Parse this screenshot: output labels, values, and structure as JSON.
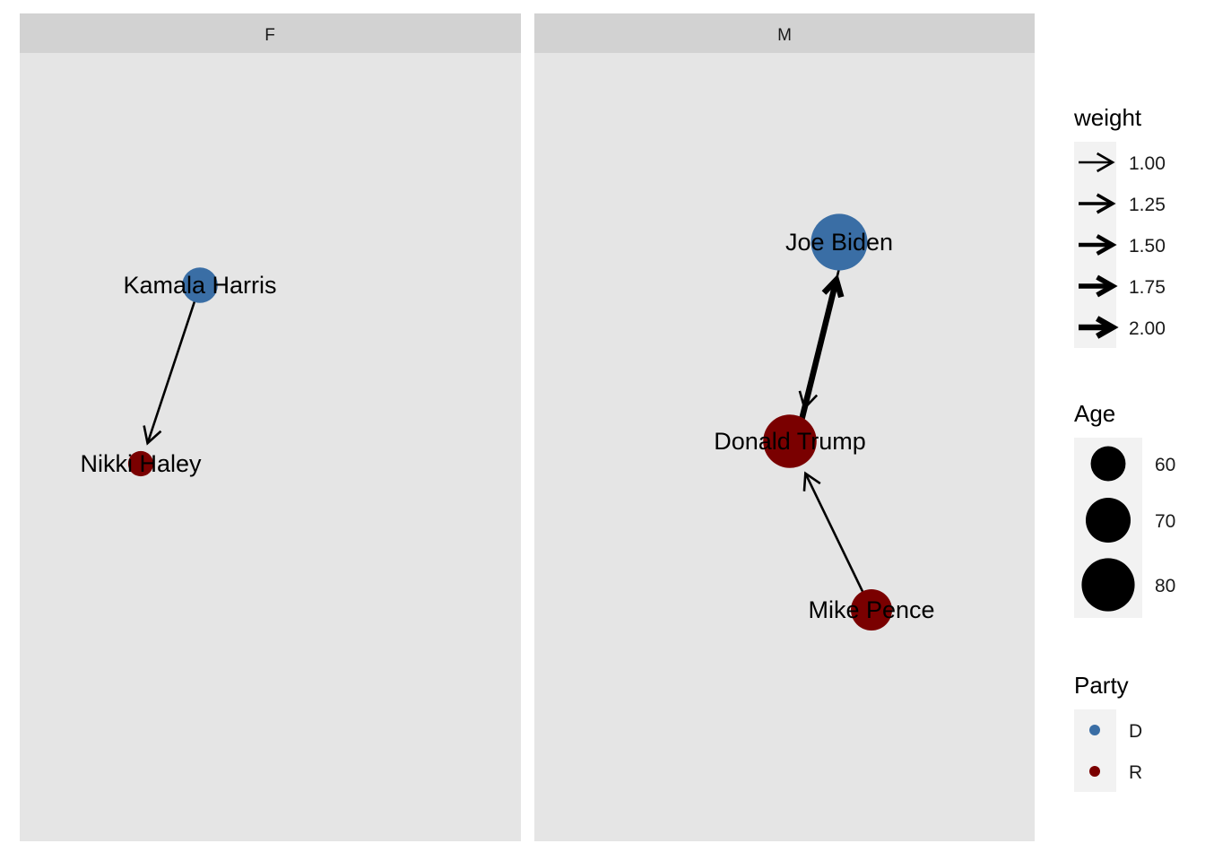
{
  "chart_data": {
    "type": "network",
    "facets": [
      {
        "label": "F",
        "nodes": [
          {
            "id": "kamala",
            "label": "Kamala Harris",
            "party": "D",
            "age": 59
          },
          {
            "id": "nikki",
            "label": "Nikki Haley",
            "party": "R",
            "age": 52
          }
        ],
        "edges": [
          {
            "from": "kamala",
            "to": "nikki",
            "weight": 1.0
          }
        ]
      },
      {
        "label": "M",
        "nodes": [
          {
            "id": "biden",
            "label": "Joe Biden",
            "party": "D",
            "age": 81
          },
          {
            "id": "trump",
            "label": "Donald Trump",
            "party": "R",
            "age": 77
          },
          {
            "id": "pence",
            "label": "Mike Pence",
            "party": "R",
            "age": 64
          }
        ],
        "edges": [
          {
            "from": "biden",
            "to": "trump",
            "weight": 1.0
          },
          {
            "from": "trump",
            "to": "biden",
            "weight": 2.0
          },
          {
            "from": "pence",
            "to": "trump",
            "weight": 1.0
          }
        ]
      }
    ],
    "legends": {
      "weight": {
        "title": "weight",
        "entries": [
          "1.00",
          "1.25",
          "1.50",
          "1.75",
          "2.00"
        ]
      },
      "age": {
        "title": "Age",
        "entries": [
          "60",
          "70",
          "80"
        ]
      },
      "party": {
        "title": "Party",
        "entries": [
          "D",
          "R"
        ]
      }
    },
    "colors": {
      "D": "#3a6ea5",
      "R": "#7a0000",
      "panel": "#e5e5e5",
      "strip": "#d2d2d2",
      "edge": "#000000"
    }
  }
}
